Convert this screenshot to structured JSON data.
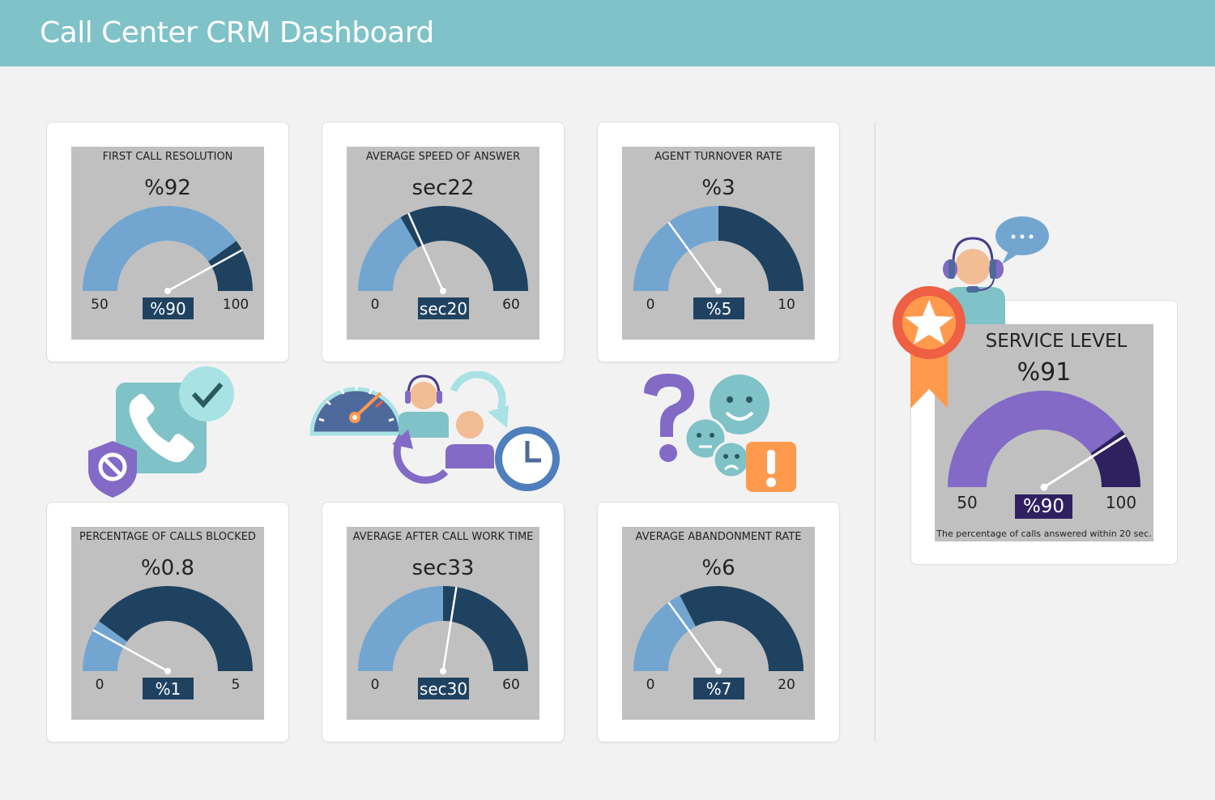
{
  "header": {
    "title": "Call Center CRM Dashboard"
  },
  "colors": {
    "header": "#7fc2c7",
    "target_fill": "#72a6d0",
    "remaining": "#1f4260",
    "sl_fill": "#826ac6",
    "sl_remaining": "#2f2060"
  },
  "gauges": [
    {
      "title": "FIRST CALL RESOLUTION",
      "value_label": "%92",
      "actual": 92,
      "target": 90,
      "target_label": "%90",
      "min": 50,
      "max": 100,
      "min_label": "50",
      "max_label": "100"
    },
    {
      "title": "AVERAGE SPEED OF ANSWER",
      "value_label": "sec22",
      "actual": 22,
      "target": 20,
      "target_label": "sec20",
      "min": 0,
      "max": 60,
      "min_label": "0",
      "max_label": "60"
    },
    {
      "title": "AGENT TURNOVER RATE",
      "value_label": "%3",
      "actual": 3,
      "target": 5,
      "target_label": "%5",
      "min": 0,
      "max": 10,
      "min_label": "0",
      "max_label": "10"
    },
    {
      "title": "PERCENTAGE OF CALLS BLOCKED",
      "value_label": "%0.8",
      "actual": 0.8,
      "target": 1,
      "target_label": "%1",
      "min": 0,
      "max": 5,
      "min_label": "0",
      "max_label": "5"
    },
    {
      "title": "AVERAGE AFTER CALL WORK TIME",
      "value_label": "sec33",
      "actual": 33,
      "target": 30,
      "target_label": "sec30",
      "min": 0,
      "max": 60,
      "min_label": "0",
      "max_label": "60"
    },
    {
      "title": "AVERAGE ABANDONMENT RATE",
      "value_label": "%6",
      "actual": 6,
      "target": 7,
      "target_label": "%7",
      "min": 0,
      "max": 20,
      "min_label": "0",
      "max_label": "20"
    }
  ],
  "service_level": {
    "title": "SERVICE LEVEL",
    "value_label": "%91",
    "actual": 91,
    "target": 90,
    "target_label": "%90",
    "min": 50,
    "max": 100,
    "min_label": "50",
    "max_label": "100",
    "note": "The percentage of calls answered within 20 sec."
  },
  "icons": [
    "phone-check-icon",
    "blocked-shield-icon",
    "speedometer-icon",
    "agent-headset-icon",
    "clock-icon",
    "question-mark-icon",
    "smiley-faces-icon",
    "alert-icon",
    "award-ribbon-icon",
    "speech-bubble-icon"
  ]
}
